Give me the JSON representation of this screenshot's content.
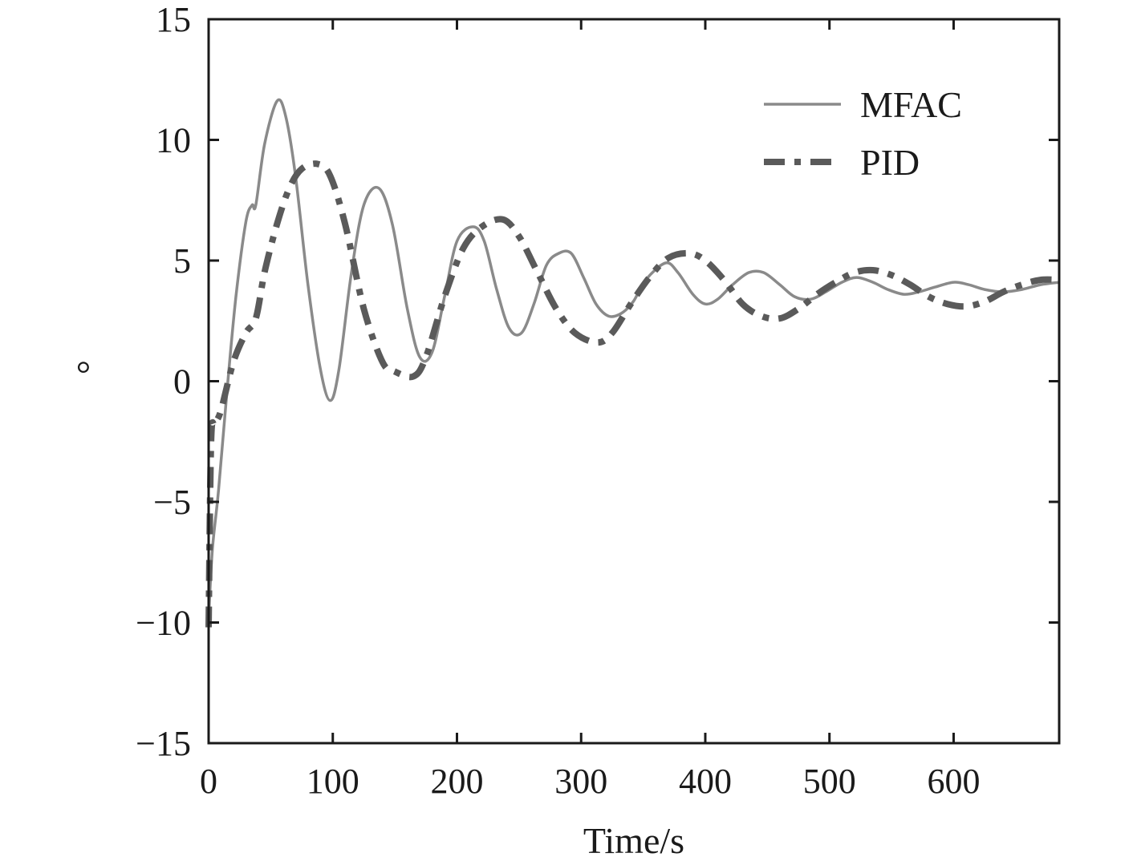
{
  "chart_data": {
    "type": "line",
    "xlabel": "Time/s",
    "ylabel": "°",
    "xlim": [
      0,
      685
    ],
    "ylim": [
      -15,
      15
    ],
    "xticks": [
      0,
      100,
      200,
      300,
      400,
      500,
      600
    ],
    "yticks": [
      -15,
      -10,
      -5,
      0,
      5,
      10,
      15
    ],
    "xtick_labels": [
      "0",
      "100",
      "200",
      "300",
      "400",
      "500",
      "600"
    ],
    "ytick_labels": [
      "−15",
      "−10",
      "−5",
      "0",
      "5",
      "10",
      "15"
    ],
    "grid": false,
    "legend_position": "top-right",
    "series": [
      {
        "name": "MFAC",
        "style": "solid",
        "color": "#8a8a8a",
        "x": [
          0,
          3,
          8,
          15,
          22,
          30,
          35,
          38,
          45,
          55,
          62,
          70,
          80,
          90,
          98,
          105,
          115,
          125,
          137,
          148,
          160,
          170,
          180,
          190,
          200,
          213,
          222,
          232,
          242,
          252,
          262,
          272,
          282,
          292,
          302,
          312,
          322,
          332,
          342,
          352,
          368,
          378,
          390,
          400,
          410,
          422,
          435,
          447,
          460,
          472,
          485,
          497,
          510,
          522,
          535,
          547,
          560,
          572,
          585,
          600,
          612,
          625,
          640,
          655,
          670,
          685
        ],
        "y": [
          -9.8,
          -7.0,
          -4.5,
          -0.3,
          3.5,
          6.6,
          7.3,
          7.3,
          9.8,
          11.6,
          11.0,
          8.5,
          4.0,
          0.5,
          -0.8,
          0.5,
          4.5,
          7.3,
          8.0,
          6.5,
          3.0,
          1.0,
          1.2,
          3.5,
          5.8,
          6.4,
          5.8,
          3.8,
          2.2,
          2.0,
          3.2,
          4.8,
          5.3,
          5.3,
          4.3,
          3.2,
          2.7,
          2.8,
          3.3,
          4.2,
          4.9,
          4.5,
          3.6,
          3.2,
          3.4,
          4.0,
          4.5,
          4.5,
          4.0,
          3.5,
          3.4,
          3.7,
          4.1,
          4.3,
          4.1,
          3.8,
          3.6,
          3.7,
          3.9,
          4.1,
          4.0,
          3.8,
          3.7,
          3.8,
          4.0,
          4.1
        ]
      },
      {
        "name": "PID",
        "style": "dashdot",
        "color": "#5a5a5a",
        "x": [
          0,
          2,
          5,
          10,
          20,
          30,
          38,
          45,
          55,
          65,
          75,
          88,
          98,
          110,
          125,
          140,
          150,
          165,
          175,
          190,
          205,
          220,
          237,
          250,
          265,
          280,
          295,
          313,
          325,
          340,
          355,
          370,
          387,
          400,
          415,
          430,
          445,
          460,
          475,
          490,
          505,
          520,
          535,
          550,
          565,
          580,
          595,
          610,
          625,
          640,
          655,
          670,
          685
        ],
        "y": [
          -10.2,
          -2.5,
          -1.8,
          -1.2,
          0.8,
          2.0,
          2.6,
          4.5,
          6.5,
          8.0,
          8.8,
          9.0,
          8.5,
          6.5,
          3.0,
          0.8,
          0.4,
          0.2,
          1.0,
          3.5,
          5.5,
          6.4,
          6.7,
          6.0,
          4.5,
          3.0,
          2.0,
          1.6,
          2.0,
          3.2,
          4.3,
          5.1,
          5.3,
          5.0,
          4.2,
          3.2,
          2.7,
          2.6,
          3.0,
          3.6,
          4.1,
          4.5,
          4.6,
          4.4,
          4.0,
          3.5,
          3.2,
          3.1,
          3.3,
          3.7,
          4.0,
          4.2,
          4.2
        ]
      }
    ]
  }
}
